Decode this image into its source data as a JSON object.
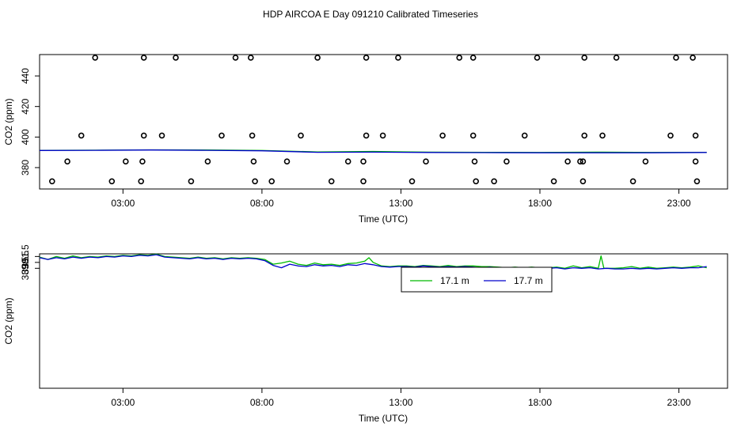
{
  "title": "HDP AIRCOA E  Day 091210  Calibrated Timeseries",
  "colors": {
    "series_17_1": "#00bb00",
    "series_17_7": "#0000cc",
    "axis": "#000000",
    "background": "#ffffff"
  },
  "chart_data": [
    {
      "type": "scatter",
      "xlabel": "Time (UTC)",
      "ylabel": "CO2 (ppm)",
      "xlim": [
        0.0,
        24.75
      ],
      "ylim": [
        366,
        454
      ],
      "xticks": [
        3,
        8,
        13,
        18,
        23
      ],
      "xtick_labels": [
        "03:00",
        "08:00",
        "13:00",
        "18:00",
        "23:00"
      ],
      "yticks": [
        380,
        400,
        420,
        440
      ],
      "ytick_labels": [
        "380",
        "400",
        "420",
        "440"
      ],
      "grid": false,
      "points": [
        {
          "x": 2.0,
          "y": 452
        },
        {
          "x": 3.75,
          "y": 452
        },
        {
          "x": 4.9,
          "y": 452
        },
        {
          "x": 7.05,
          "y": 452
        },
        {
          "x": 7.6,
          "y": 452
        },
        {
          "x": 10.0,
          "y": 452
        },
        {
          "x": 11.75,
          "y": 452
        },
        {
          "x": 12.9,
          "y": 452
        },
        {
          "x": 15.1,
          "y": 452
        },
        {
          "x": 15.6,
          "y": 452
        },
        {
          "x": 17.9,
          "y": 452
        },
        {
          "x": 19.6,
          "y": 452
        },
        {
          "x": 20.75,
          "y": 452
        },
        {
          "x": 22.9,
          "y": 452
        },
        {
          "x": 23.5,
          "y": 452
        },
        {
          "x": 1.5,
          "y": 401
        },
        {
          "x": 3.75,
          "y": 401
        },
        {
          "x": 4.4,
          "y": 401
        },
        {
          "x": 6.55,
          "y": 401
        },
        {
          "x": 7.65,
          "y": 401
        },
        {
          "x": 9.4,
          "y": 401
        },
        {
          "x": 11.75,
          "y": 401
        },
        {
          "x": 12.35,
          "y": 401
        },
        {
          "x": 14.5,
          "y": 401
        },
        {
          "x": 15.6,
          "y": 401
        },
        {
          "x": 17.45,
          "y": 401
        },
        {
          "x": 19.6,
          "y": 401
        },
        {
          "x": 20.25,
          "y": 401
        },
        {
          "x": 22.7,
          "y": 401
        },
        {
          "x": 23.6,
          "y": 401
        },
        {
          "x": 1.0,
          "y": 384
        },
        {
          "x": 3.1,
          "y": 384
        },
        {
          "x": 3.7,
          "y": 384
        },
        {
          "x": 6.05,
          "y": 384
        },
        {
          "x": 7.7,
          "y": 384
        },
        {
          "x": 8.9,
          "y": 384
        },
        {
          "x": 11.1,
          "y": 384
        },
        {
          "x": 11.65,
          "y": 384
        },
        {
          "x": 13.9,
          "y": 384
        },
        {
          "x": 15.65,
          "y": 384
        },
        {
          "x": 16.8,
          "y": 384
        },
        {
          "x": 19.0,
          "y": 384
        },
        {
          "x": 19.45,
          "y": 384
        },
        {
          "x": 19.55,
          "y": 384
        },
        {
          "x": 21.8,
          "y": 384
        },
        {
          "x": 23.6,
          "y": 384
        },
        {
          "x": 0.45,
          "y": 371
        },
        {
          "x": 2.6,
          "y": 371
        },
        {
          "x": 3.65,
          "y": 371
        },
        {
          "x": 5.45,
          "y": 371
        },
        {
          "x": 7.75,
          "y": 371
        },
        {
          "x": 8.35,
          "y": 371
        },
        {
          "x": 10.5,
          "y": 371
        },
        {
          "x": 11.65,
          "y": 371
        },
        {
          "x": 13.4,
          "y": 371
        },
        {
          "x": 15.7,
          "y": 371
        },
        {
          "x": 16.35,
          "y": 371
        },
        {
          "x": 18.5,
          "y": 371
        },
        {
          "x": 19.55,
          "y": 371
        },
        {
          "x": 21.35,
          "y": 371
        },
        {
          "x": 23.65,
          "y": 371
        }
      ],
      "baseline_series": [
        {
          "name": "17.1 m",
          "x": [
            0.0,
            2.0,
            4.0,
            6.0,
            8.0,
            10.0,
            12.0,
            14.0,
            16.0,
            18.0,
            20.0,
            22.0,
            24.0
          ],
          "values": [
            391.3,
            391.4,
            391.6,
            391.5,
            391.2,
            390.3,
            390.6,
            390.1,
            390.0,
            389.9,
            390.1,
            389.9,
            390.0
          ]
        },
        {
          "name": "17.7 m",
          "x": [
            0.0,
            2.0,
            4.0,
            6.0,
            8.0,
            10.0,
            12.0,
            14.0,
            16.0,
            18.0,
            20.0,
            22.0,
            24.0
          ],
          "values": [
            391.2,
            391.3,
            391.5,
            391.3,
            391.0,
            390.0,
            390.1,
            389.9,
            389.8,
            389.7,
            389.7,
            389.7,
            389.9
          ]
        }
      ]
    },
    {
      "type": "line",
      "xlabel": "Time (UTC)",
      "ylabel": "CO2 (ppm)",
      "xlim": [
        0.0,
        24.75
      ],
      "ylim": [
        369.2,
        391.95
      ],
      "xticks": [
        3,
        8,
        13,
        18,
        23
      ],
      "xtick_labels": [
        "03:00",
        "08:00",
        "13:00",
        "18:00",
        "23:00"
      ],
      "yticks": [
        389.5,
        390.5,
        391.5
      ],
      "ytick_labels": [
        "389.5",
        "390.5",
        "391.5"
      ],
      "grid": false,
      "legend": "top-right",
      "series": [
        {
          "name": "17.1 m",
          "x": [
            0.0,
            0.3,
            0.6,
            0.9,
            1.2,
            1.5,
            1.8,
            2.1,
            2.4,
            2.7,
            3.0,
            3.3,
            3.6,
            3.9,
            4.2,
            4.5,
            4.8,
            5.1,
            5.4,
            5.7,
            6.0,
            6.3,
            6.6,
            6.9,
            7.2,
            7.5,
            7.8,
            8.1,
            8.4,
            8.7,
            9.0,
            9.3,
            9.6,
            9.9,
            10.2,
            10.5,
            10.8,
            11.1,
            11.4,
            11.7,
            11.85,
            12.0,
            12.3,
            12.6,
            12.9,
            13.2,
            13.5,
            13.8,
            14.1,
            14.4,
            14.7,
            15.0,
            15.3,
            15.6,
            15.9,
            16.2,
            16.5,
            16.8,
            17.1,
            17.4,
            17.7,
            18.0,
            18.3,
            18.6,
            18.9,
            19.2,
            19.5,
            19.8,
            20.1,
            20.2,
            20.3,
            20.4,
            20.7,
            21.0,
            21.3,
            21.6,
            21.9,
            22.2,
            22.5,
            22.8,
            23.1,
            23.4,
            23.7,
            24.0
          ],
          "values": [
            391.4,
            391.0,
            391.5,
            391.2,
            391.6,
            391.3,
            391.5,
            391.4,
            391.6,
            391.5,
            391.7,
            391.6,
            391.8,
            391.7,
            391.9,
            391.5,
            391.4,
            391.3,
            391.2,
            391.4,
            391.2,
            391.3,
            391.1,
            391.3,
            391.2,
            391.3,
            391.2,
            391.0,
            390.2,
            390.4,
            390.7,
            390.2,
            390.0,
            390.4,
            390.1,
            390.2,
            390.0,
            390.3,
            390.4,
            390.7,
            391.3,
            390.5,
            389.9,
            389.8,
            389.9,
            389.9,
            389.8,
            390.0,
            389.9,
            389.8,
            390.0,
            389.8,
            389.9,
            389.9,
            389.8,
            389.8,
            389.7,
            389.6,
            389.7,
            389.6,
            389.7,
            389.6,
            389.6,
            389.7,
            389.5,
            389.9,
            389.6,
            389.8,
            389.5,
            391.6,
            389.5,
            389.5,
            389.5,
            389.6,
            389.8,
            389.5,
            389.7,
            389.5,
            389.6,
            389.7,
            389.6,
            389.7,
            389.9,
            389.6
          ]
        },
        {
          "name": "17.7 m",
          "x": [
            0.0,
            0.3,
            0.6,
            0.9,
            1.2,
            1.5,
            1.8,
            2.1,
            2.4,
            2.7,
            3.0,
            3.3,
            3.6,
            3.9,
            4.2,
            4.5,
            4.8,
            5.1,
            5.4,
            5.7,
            6.0,
            6.3,
            6.6,
            6.9,
            7.2,
            7.5,
            7.8,
            8.1,
            8.4,
            8.7,
            9.0,
            9.3,
            9.6,
            9.9,
            10.2,
            10.5,
            10.8,
            11.1,
            11.4,
            11.7,
            12.0,
            12.3,
            12.6,
            12.9,
            13.2,
            13.5,
            13.8,
            14.1,
            14.4,
            14.7,
            15.0,
            15.3,
            15.6,
            15.9,
            16.2,
            16.5,
            16.8,
            17.1,
            17.4,
            17.7,
            18.0,
            18.3,
            18.6,
            18.9,
            19.2,
            19.5,
            19.8,
            20.1,
            20.4,
            20.7,
            21.0,
            21.3,
            21.6,
            21.9,
            22.2,
            22.5,
            22.8,
            23.1,
            23.4,
            23.7,
            24.0
          ],
          "values": [
            391.3,
            391.0,
            391.3,
            391.1,
            391.4,
            391.2,
            391.4,
            391.3,
            391.5,
            391.4,
            391.6,
            391.5,
            391.7,
            391.6,
            391.8,
            391.4,
            391.3,
            391.2,
            391.1,
            391.3,
            391.1,
            391.2,
            391.0,
            391.2,
            391.1,
            391.2,
            391.1,
            390.8,
            390.0,
            389.6,
            390.2,
            389.9,
            389.8,
            390.1,
            389.9,
            390.0,
            389.8,
            390.1,
            390.0,
            390.3,
            390.1,
            389.8,
            389.7,
            389.8,
            389.8,
            389.7,
            389.9,
            389.8,
            389.7,
            389.8,
            389.7,
            389.8,
            389.7,
            389.6,
            389.7,
            389.6,
            389.5,
            389.6,
            389.5,
            389.6,
            389.5,
            389.5,
            389.6,
            389.4,
            389.6,
            389.5,
            389.6,
            389.4,
            389.5,
            389.4,
            389.4,
            389.5,
            389.4,
            389.5,
            389.4,
            389.5,
            389.6,
            389.5,
            389.6,
            389.6,
            389.8
          ]
        }
      ]
    }
  ]
}
